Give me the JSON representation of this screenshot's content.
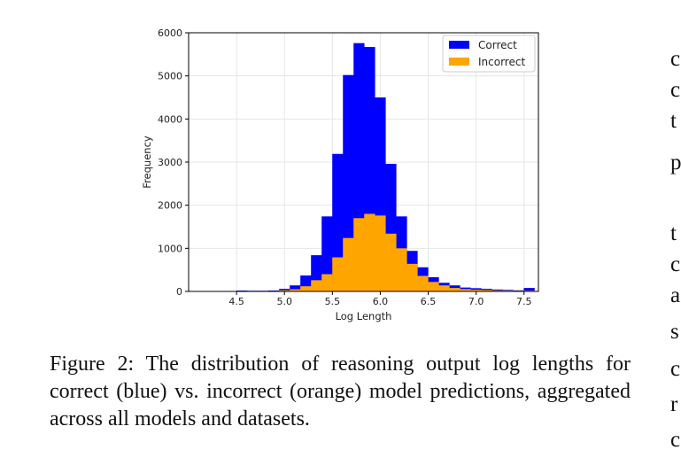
{
  "chart_data": {
    "type": "bar",
    "title": "",
    "xlabel": "Log Length",
    "ylabel": "Frequency",
    "xlim": [
      4.0,
      7.65
    ],
    "ylim": [
      0,
      6000
    ],
    "x_ticks": [
      "4.5",
      "5.0",
      "5.5",
      "6.0",
      "6.5",
      "7.0",
      "7.5"
    ],
    "y_ticks": [
      "0",
      "1000",
      "2000",
      "3000",
      "4000",
      "5000",
      "6000"
    ],
    "grid": true,
    "legend": "top-right",
    "bin_width": 0.111,
    "bin_starts": [
      4.5,
      4.611,
      4.722,
      4.833,
      4.944,
      5.055,
      5.166,
      5.277,
      5.388,
      5.499,
      5.61,
      5.721,
      5.832,
      5.943,
      6.054,
      6.165,
      6.276,
      6.387,
      6.498,
      6.609,
      6.72,
      6.831,
      6.942,
      7.053,
      7.164,
      7.275,
      7.386,
      7.497
    ],
    "series": [
      {
        "name": "Correct",
        "color": "#0000ff",
        "values": [
          20,
          15,
          15,
          20,
          60,
          140,
          370,
          840,
          1740,
          3190,
          5020,
          5760,
          5670,
          4500,
          2960,
          1740,
          940,
          560,
          330,
          200,
          140,
          90,
          75,
          60,
          45,
          35,
          25,
          80
        ]
      },
      {
        "name": "Incorrect",
        "color": "#ffa500",
        "values": [
          10,
          5,
          5,
          10,
          30,
          50,
          120,
          260,
          400,
          790,
          1240,
          1700,
          1800,
          1760,
          1340,
          1000,
          640,
          360,
          220,
          140,
          80,
          55,
          40,
          35,
          25,
          20,
          15,
          20
        ]
      }
    ]
  },
  "caption": "Figure 2: The distribution of reasoning output log lengths for correct (blue) vs. incorrect (orange) model predictions, aggregated across all models and datasets.",
  "side_letters": [
    "c",
    "c",
    "t",
    "p",
    "t",
    "c",
    "a",
    "s",
    "c",
    "r",
    "c"
  ]
}
